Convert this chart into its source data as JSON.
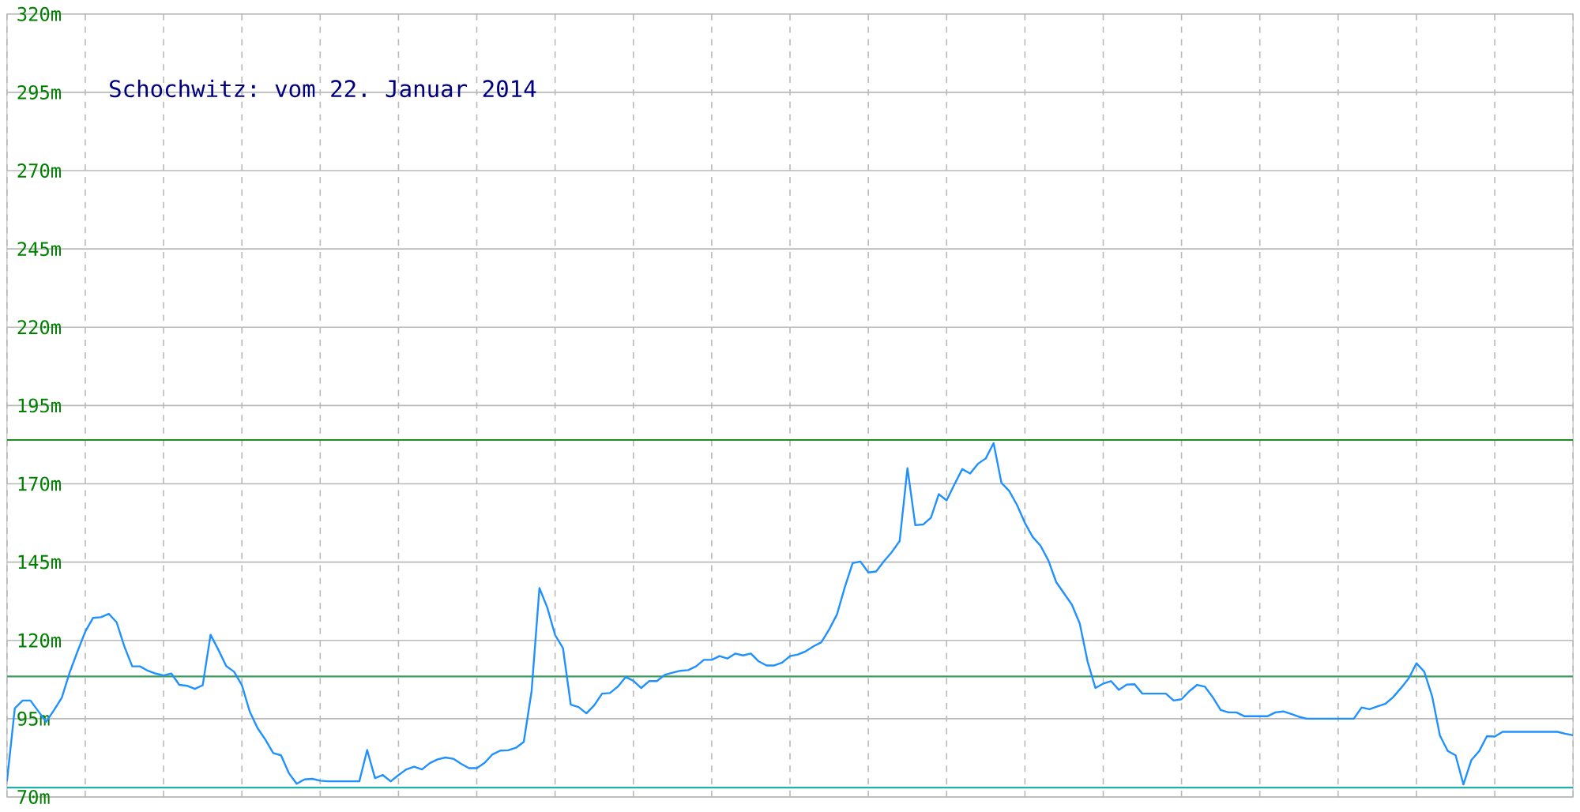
{
  "chart_data": {
    "type": "line",
    "title": "Schochwitz: vom 22. Januar 2014",
    "categories": [
      null,
      null,
      null,
      null,
      null,
      null,
      null,
      null,
      null,
      null,
      null,
      null,
      null,
      null,
      null,
      null,
      null,
      null,
      null,
      null,
      null,
      null,
      null,
      null,
      null,
      null,
      null,
      null,
      null,
      null,
      null,
      null,
      null,
      null,
      null,
      null,
      null,
      null,
      null,
      null,
      null,
      null,
      null,
      null,
      null,
      null,
      null,
      null,
      null,
      null,
      null,
      null,
      null,
      null,
      null,
      null,
      null,
      null,
      null,
      null,
      null,
      null,
      null,
      null,
      null,
      null,
      null,
      null,
      null,
      null,
      null,
      null,
      null,
      null,
      null,
      null,
      null,
      null,
      null,
      null,
      null,
      null,
      null,
      null,
      null,
      null,
      null,
      null,
      null,
      null,
      null,
      null,
      null,
      null,
      null,
      null,
      null,
      null,
      null,
      null,
      null,
      null,
      null,
      null,
      null,
      null,
      null,
      null,
      null,
      null,
      null,
      null,
      null,
      null,
      null,
      null,
      null,
      null,
      null,
      null,
      null,
      null,
      null,
      null,
      null,
      null,
      null,
      null,
      null,
      null,
      null,
      null,
      null,
      null,
      null,
      null,
      null,
      null,
      null,
      null,
      null,
      null,
      null,
      null,
      null,
      null,
      null,
      null,
      null,
      null,
      null,
      null,
      null,
      null,
      null,
      null,
      null,
      null,
      null,
      null,
      null,
      null,
      null,
      null,
      null,
      null,
      null,
      null,
      null,
      null,
      null,
      null,
      null,
      null,
      null,
      null,
      null,
      null,
      null,
      null,
      null,
      null,
      null,
      null,
      null,
      null,
      null,
      null,
      null,
      null,
      null,
      null,
      null,
      null,
      null,
      null,
      null,
      null,
      null,
      null,
      null
    ],
    "ylim": [
      70,
      320
    ],
    "yticks": [
      {
        "value": 70,
        "label": "70m"
      },
      {
        "value": 95,
        "label": "95m"
      },
      {
        "value": 120,
        "label": "120m"
      },
      {
        "value": 145,
        "label": "145m"
      },
      {
        "value": 170,
        "label": "170m"
      },
      {
        "value": 195,
        "label": "195m"
      },
      {
        "value": 220,
        "label": "220m"
      },
      {
        "value": 245,
        "label": "245m"
      },
      {
        "value": 270,
        "label": "270m"
      },
      {
        "value": 295,
        "label": "295m"
      },
      {
        "value": 320,
        "label": "320m"
      }
    ],
    "grid": true,
    "tick_labels": "y",
    "ref_lines": [
      {
        "axis": "y",
        "value": 184,
        "color": "#228b22"
      },
      {
        "axis": "y",
        "value": 108.5,
        "color": "#3c9a5a"
      },
      {
        "axis": "y",
        "value": 73,
        "color": "#20b2aa"
      }
    ],
    "series": [
      {
        "color": "#1e90ff",
        "values": [
          75.0,
          98.3,
          100.8,
          100.8,
          97.4,
          94.0,
          97.7,
          101.7,
          109.7,
          116.4,
          122.8,
          127.2,
          127.4,
          128.5,
          125.8,
          118.0,
          111.7,
          111.7,
          110.3,
          109.4,
          108.8,
          109.4,
          105.8,
          105.5,
          104.5,
          105.7,
          121.8,
          117.0,
          111.8,
          110.0,
          105.7,
          97.3,
          92.0,
          88.3,
          84.0,
          83.3,
          77.6,
          74.2,
          75.6,
          75.8,
          75.2,
          75.0,
          75.0,
          75.0,
          75.0,
          75.0,
          85.0,
          76.0,
          77.0,
          75.0,
          77.0,
          78.8,
          79.7,
          78.8,
          80.8,
          82.0,
          82.6,
          82.2,
          80.6,
          79.2,
          79.2,
          80.9,
          83.6,
          84.8,
          84.9,
          85.7,
          87.6,
          103.8,
          136.7,
          130.5,
          121.7,
          117.6,
          99.5,
          98.7,
          96.7,
          99.3,
          103.0,
          103.2,
          105.2,
          108.3,
          107.1,
          104.8,
          107.0,
          107.0,
          109.0,
          109.7,
          110.3,
          110.5,
          111.7,
          113.8,
          113.8,
          115.0,
          114.2,
          115.8,
          115.2,
          115.8,
          113.3,
          112.0,
          112.0,
          112.9,
          115.0,
          115.5,
          116.5,
          118.1,
          119.4,
          123.5,
          128.3,
          137.0,
          144.7,
          145.2,
          141.7,
          142.0,
          145.3,
          148.2,
          151.7,
          175.0,
          156.8,
          157.0,
          159.2,
          166.7,
          164.7,
          169.8,
          174.7,
          173.3,
          176.4,
          178.1,
          183.0,
          170.3,
          167.7,
          163.2,
          157.5,
          153.0,
          150.2,
          145.5,
          138.6,
          135.0,
          131.4,
          125.4,
          113.3,
          104.8,
          106.2,
          107.0,
          104.2,
          105.9,
          106.0,
          103.0,
          103.0,
          103.0,
          103.0,
          100.8,
          101.2,
          103.8,
          105.8,
          105.2,
          101.8,
          97.8,
          97.0,
          97.0,
          95.8,
          95.8,
          95.8,
          95.8,
          97.0,
          97.3,
          96.5,
          95.6,
          95.0,
          95.0,
          95.0,
          95.0,
          95.0,
          95.0,
          95.0,
          98.6,
          98.0,
          98.9,
          99.7,
          101.8,
          104.7,
          107.8,
          112.7,
          110.0,
          102.2,
          89.6,
          84.7,
          83.3,
          74.0,
          81.7,
          84.6,
          89.4,
          89.3,
          90.8,
          90.8,
          90.8,
          90.8,
          90.8,
          90.8,
          90.8,
          90.8,
          90.2,
          89.7
        ]
      }
    ]
  }
}
